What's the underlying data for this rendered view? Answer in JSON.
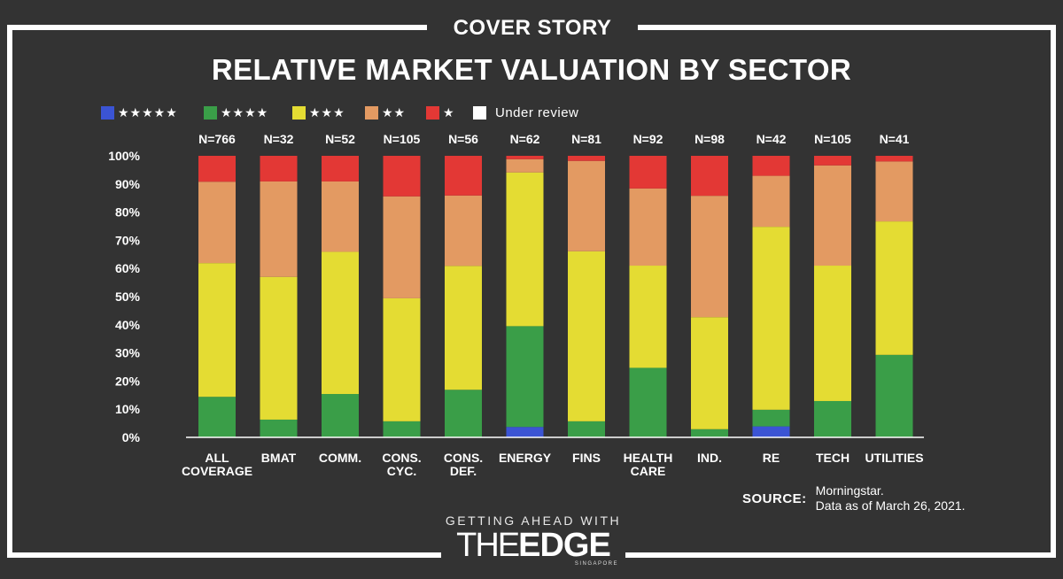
{
  "header": {
    "kicker": "COVER STORY",
    "title": "RELATIVE MARKET VALUATION BY SECTOR"
  },
  "legend": [
    {
      "label": "★★★★★",
      "color": "#3b54d4"
    },
    {
      "label": "★★★★",
      "color": "#3a9e48"
    },
    {
      "label": "★★★",
      "color": "#e4dc33"
    },
    {
      "label": "★★",
      "color": "#e39a62"
    },
    {
      "label": "★",
      "color": "#e33835"
    },
    {
      "label": "Under review",
      "color": "#ffffff"
    }
  ],
  "source": {
    "label": "SOURCE:",
    "line1": "Morningstar.",
    "line2": "Data as of March 26, 2021."
  },
  "brand": {
    "tagline": "GETTING AHEAD WITH",
    "logo_the": "THE",
    "logo_edge": "EDGE",
    "sub": "SINGAPORE"
  },
  "chart_data": {
    "type": "bar",
    "stacked": true,
    "ylim": [
      0,
      100
    ],
    "yticks": [
      "0%",
      "10%",
      "20%",
      "30%",
      "40%",
      "50%",
      "60%",
      "70%",
      "80%",
      "90%",
      "100%"
    ],
    "categories": [
      [
        "ALL",
        "COVERAGE"
      ],
      [
        "BMAT"
      ],
      [
        "COMM."
      ],
      [
        "CONS.",
        "CYC."
      ],
      [
        "CONS.",
        "DEF."
      ],
      [
        "ENERGY"
      ],
      [
        "FINS"
      ],
      [
        "HEALTH",
        "CARE"
      ],
      [
        "IND."
      ],
      [
        "RE"
      ],
      [
        "TECH"
      ],
      [
        "UTILITIES"
      ]
    ],
    "counts": [
      "N=766",
      "N=32",
      "N=52",
      "N=105",
      "N=56",
      "N=62",
      "N=81",
      "N=92",
      "N=98",
      "N=42",
      "N=105",
      "N=41"
    ],
    "series": [
      {
        "name": "★★★★★",
        "color": "#3b54d4",
        "values": [
          0,
          0,
          0,
          0,
          0,
          3.7,
          0,
          0,
          0,
          3.9,
          0,
          0
        ]
      },
      {
        "name": "★★★★",
        "color": "#3a9e48",
        "values": [
          14.4,
          6.3,
          15.4,
          5.7,
          16.9,
          35.8,
          5.7,
          24.7,
          2.9,
          5.9,
          12.9,
          29.3
        ]
      },
      {
        "name": "★★★",
        "color": "#e4dc33",
        "values": [
          47.5,
          50.7,
          50.5,
          43.7,
          44.0,
          54.6,
          60.4,
          36.3,
          39.8,
          65.0,
          48.1,
          47.4
        ]
      },
      {
        "name": "★★",
        "color": "#e39a62",
        "values": [
          28.9,
          33.9,
          25.0,
          36.2,
          25.0,
          4.7,
          32.1,
          27.4,
          43.1,
          18.1,
          35.6,
          21.3
        ]
      },
      {
        "name": "★",
        "color": "#e33835",
        "values": [
          9.2,
          9.1,
          9.1,
          14.4,
          14.1,
          1.2,
          1.8,
          11.6,
          14.2,
          7.1,
          3.4,
          2.0
        ]
      },
      {
        "name": "Under review",
        "color": "#ffffff",
        "values": [
          0,
          0,
          0,
          0,
          0,
          0,
          0,
          0,
          0,
          0,
          0,
          0
        ]
      }
    ]
  }
}
